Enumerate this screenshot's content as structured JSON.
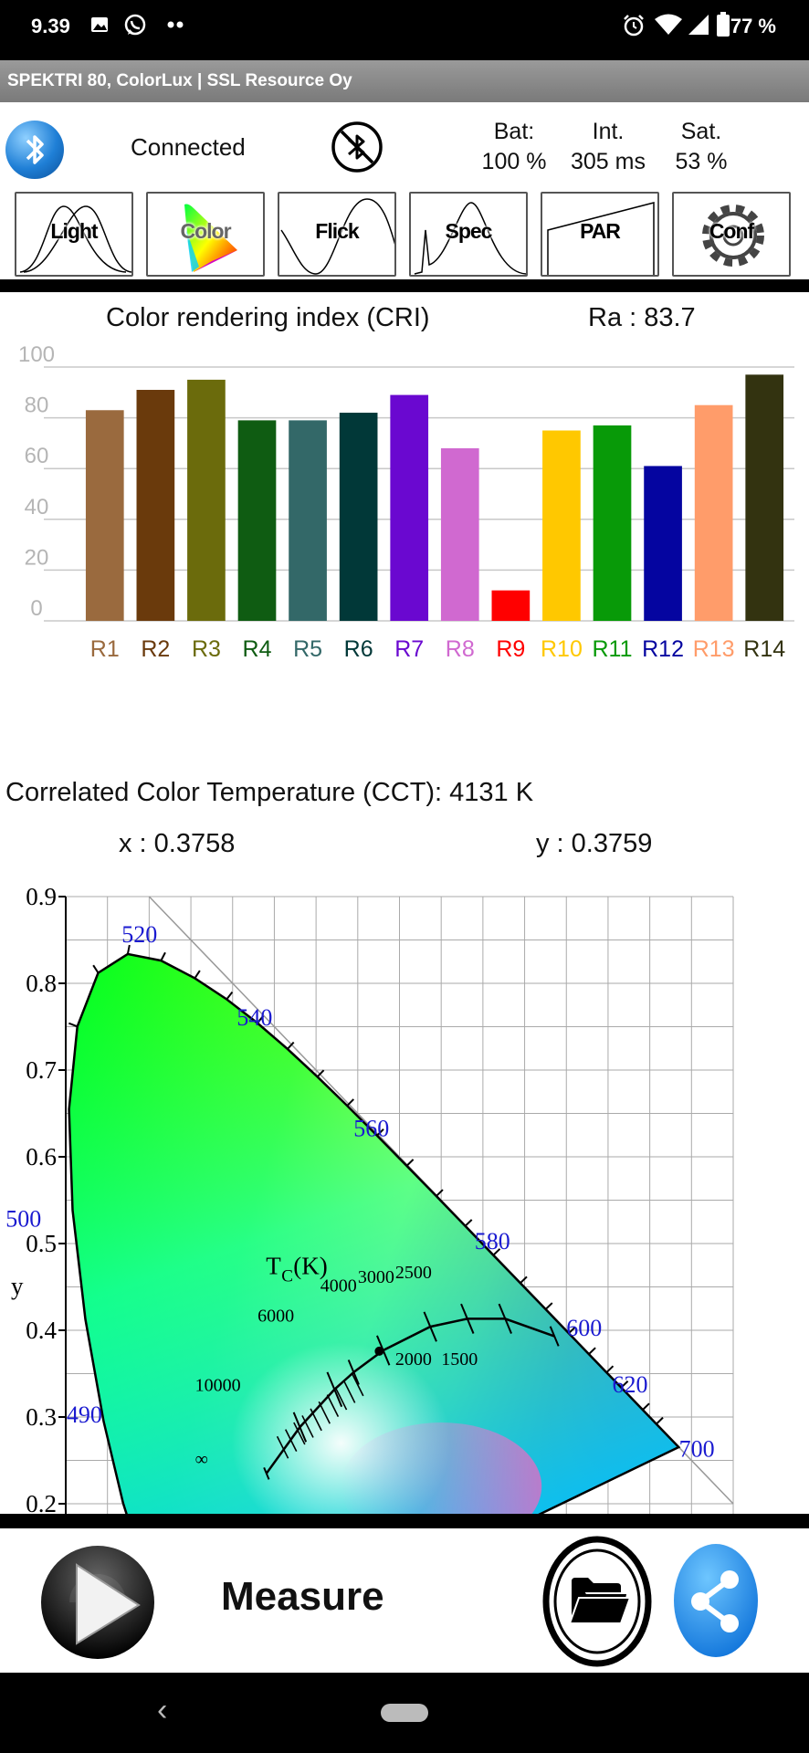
{
  "status_bar": {
    "time": "9.39",
    "battery": "77 %",
    "icons": [
      "image-icon",
      "whatsapp-icon",
      "more-dots-icon",
      "alarm-icon",
      "wifi-icon",
      "signal-icon",
      "battery-icon"
    ]
  },
  "app_title": "SPEKTRI 80, ColorLux  |  SSL Resource Oy",
  "connection": {
    "status": "Connected",
    "bat_label": "Bat:",
    "bat_value": "100 %",
    "int_label": "Int.",
    "int_value": "305 ms",
    "sat_label": "Sat.",
    "sat_value": "53 %"
  },
  "tabs": [
    {
      "label": "Light"
    },
    {
      "label": "Color"
    },
    {
      "label": "Flick"
    },
    {
      "label": "Spec"
    },
    {
      "label": "PAR"
    },
    {
      "label": "Conf"
    }
  ],
  "cri": {
    "title": "Color rendering index (CRI)",
    "ra": "Ra : 83.7"
  },
  "chart_data": {
    "type": "bar",
    "categories": [
      "R1",
      "R2",
      "R3",
      "R4",
      "R5",
      "R6",
      "R7",
      "R8",
      "R9",
      "R10",
      "R11",
      "R12",
      "R13",
      "R14"
    ],
    "values": [
      83,
      91,
      95,
      79,
      79,
      82,
      89,
      68,
      12,
      75,
      77,
      61,
      85,
      97
    ],
    "colors": [
      "#9a6a3e",
      "#6a3a0c",
      "#6b6b0c",
      "#0f5c12",
      "#336868",
      "#013838",
      "#6a08d0",
      "#d069d0",
      "#ff0000",
      "#ffc800",
      "#089a08",
      "#0505a0",
      "#ff9c6a",
      "#333310"
    ],
    "yticks": [
      0,
      20,
      40,
      60,
      80,
      100
    ],
    "ylim": [
      0,
      100
    ]
  },
  "cct": {
    "label": "Correlated Color Temperature (CCT): 4131 K",
    "x": "x : 0.3758",
    "y": "y : 0.3759"
  },
  "cie": {
    "xy": [
      0.3758,
      0.3759
    ],
    "y_axis_label": "y",
    "yticks": [
      "0.9",
      "0.8",
      "0.7",
      "0.6",
      "0.5",
      "0.4",
      "0.3",
      "0.2"
    ],
    "wavelengths": [
      "520",
      "540",
      "560",
      "580",
      "600",
      "620",
      "700",
      "500",
      "490"
    ],
    "tc_label": "T",
    "tc_sub": "C",
    "tc_unit": "(K)",
    "isotherms": [
      "10000",
      "6000",
      "4000",
      "3000",
      "2500",
      "2000",
      "1500",
      "∞"
    ]
  },
  "controls": {
    "measure": "Measure"
  }
}
